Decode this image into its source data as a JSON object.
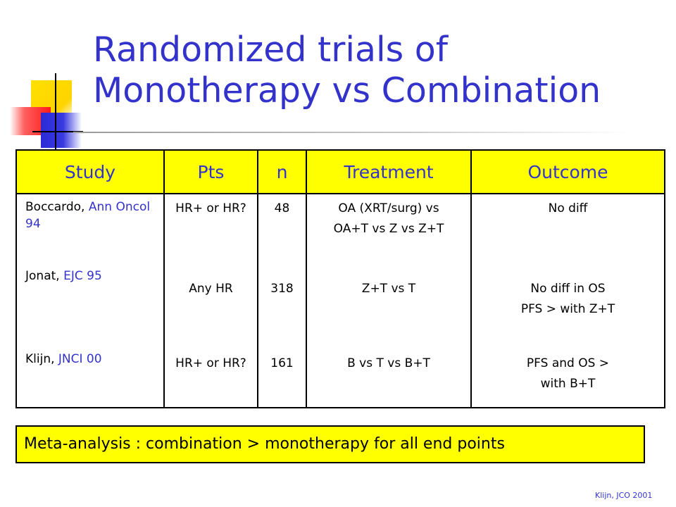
{
  "slide": {
    "title_line1": "Randomized trials of",
    "title_line2": "Monotherapy vs Combination"
  },
  "table": {
    "headers": [
      "Study",
      "Pts",
      "n",
      "Treatment",
      "Outcome"
    ],
    "rows": [
      {
        "study_author": "Boccardo,",
        "study_source": "Ann Oncol 94",
        "pts": "HR+ or HR?",
        "n": "48",
        "treatment": [
          "OA (XRT/surg) vs",
          "OA+T vs Z vs Z+T"
        ],
        "outcome": [
          "No diff"
        ]
      },
      {
        "study_author": "Jonat,",
        "study_source": "EJC 95",
        "pts": "Any HR",
        "n": "318",
        "treatment": [
          "Z+T vs T"
        ],
        "outcome": [
          "No diff in OS",
          "PFS > with Z+T"
        ]
      },
      {
        "study_author": "Klijn,",
        "study_source": "JNCI 00",
        "pts": "HR+ or HR?",
        "n": "161",
        "treatment": [
          "B vs T vs B+T"
        ],
        "outcome": [
          "PFS and OS >",
          "with B+T"
        ]
      }
    ]
  },
  "meta_box": {
    "text": "Meta-analysis : combination > monotherapy for all end points"
  },
  "footnote": {
    "text": "Klijn, JCO 2001"
  },
  "colors": {
    "title": "#3333cc",
    "header_bg": "#ffff00",
    "meta_bg": "#ffff00",
    "source_text": "#3333cc"
  }
}
